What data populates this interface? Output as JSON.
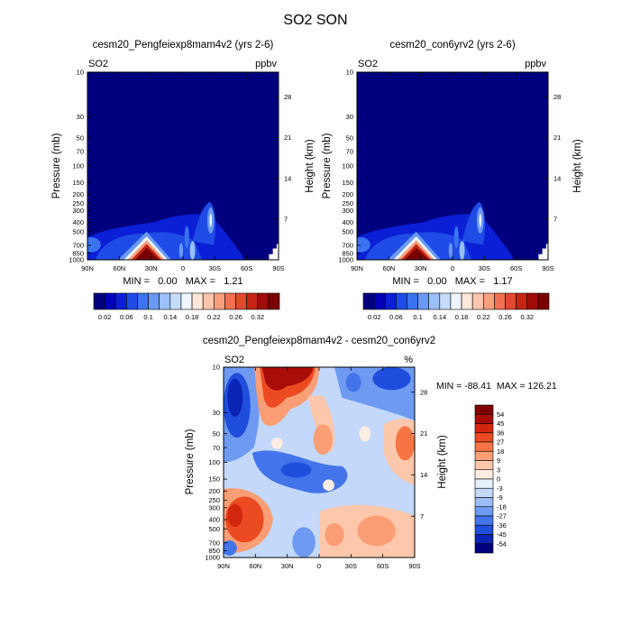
{
  "figure": {
    "title": "SO2 SON"
  },
  "chart_data": [
    {
      "type": "heatmap",
      "title": "cesm20_Pengfeiexp8mam4v2 (yrs 2-6)",
      "left_label": "SO2",
      "right_label": "ppbv",
      "ylabel": "Pressure (mb)",
      "ylabel_right": "Height (km)",
      "x_ticks": [
        "90N",
        "60N",
        "30N",
        "0",
        "30S",
        "60S",
        "90S"
      ],
      "y_ticks": [
        "10",
        "30",
        "50",
        "70",
        "100",
        "150",
        "200",
        "250",
        "300",
        "400",
        "500",
        "700",
        "850",
        "1000"
      ],
      "y_ticks_right": [
        "28",
        "21",
        "14",
        "7"
      ],
      "ylim": [
        1000,
        10
      ],
      "xlim": [
        "90N",
        "90S"
      ],
      "min_max_text": "MIN =   0.00   MAX =   1.21",
      "min": 0.0,
      "max": 1.21,
      "colorbar_labels": [
        "0.02",
        "0.06",
        "0.1",
        "0.14",
        "0.18",
        "0.22",
        "0.26",
        "0.32"
      ],
      "colorbar_levels": [
        0.02,
        0.04,
        0.06,
        0.08,
        0.1,
        0.12,
        0.14,
        0.16,
        0.18,
        0.2,
        0.22,
        0.24,
        0.26,
        0.28,
        0.3,
        0.32
      ]
    },
    {
      "type": "heatmap",
      "title": "cesm20_con6yrv2 (yrs 2-6)",
      "left_label": "SO2",
      "right_label": "ppbv",
      "ylabel": "Pressure (mb)",
      "ylabel_right": "Height (km)",
      "x_ticks": [
        "90N",
        "60N",
        "30N",
        "0",
        "30S",
        "60S",
        "90S"
      ],
      "y_ticks": [
        "10",
        "30",
        "50",
        "70",
        "100",
        "150",
        "200",
        "250",
        "300",
        "400",
        "500",
        "700",
        "850",
        "1000"
      ],
      "y_ticks_right": [
        "28",
        "21",
        "14",
        "7"
      ],
      "ylim": [
        1000,
        10
      ],
      "xlim": [
        "90N",
        "90S"
      ],
      "min_max_text": "MIN =   0.00   MAX =   1.17",
      "min": 0.0,
      "max": 1.17,
      "colorbar_labels": [
        "0.02",
        "0.06",
        "0.1",
        "0.14",
        "0.18",
        "0.22",
        "0.26",
        "0.32"
      ],
      "colorbar_levels": [
        0.02,
        0.04,
        0.06,
        0.08,
        0.1,
        0.12,
        0.14,
        0.16,
        0.18,
        0.2,
        0.22,
        0.24,
        0.26,
        0.28,
        0.3,
        0.32
      ]
    },
    {
      "type": "heatmap",
      "title": "cesm20_Pengfeiexp8mam4v2 - cesm20_con6yrv2",
      "left_label": "SO2",
      "right_label": "%",
      "ylabel": "Pressure (mb)",
      "ylabel_right": "Height (km)",
      "x_ticks": [
        "90N",
        "60N",
        "30N",
        "0",
        "30S",
        "60S",
        "90S"
      ],
      "y_ticks": [
        "10",
        "30",
        "50",
        "70",
        "100",
        "150",
        "200",
        "250",
        "300",
        "400",
        "500",
        "700",
        "850",
        "1000"
      ],
      "y_ticks_right": [
        "28",
        "21",
        "14",
        "7"
      ],
      "ylim": [
        1000,
        10
      ],
      "xlim": [
        "90N",
        "90S"
      ],
      "min_max_text": "MIN = -88.41  MAX = 126.21",
      "min": -88.41,
      "max": 126.21,
      "colorbar_labels": [
        "54",
        "45",
        "36",
        "27",
        "18",
        "9",
        "3",
        "0",
        "-3",
        "-9",
        "-18",
        "-27",
        "-36",
        "-45",
        "-54"
      ],
      "colorbar_levels": [
        54,
        45,
        36,
        27,
        18,
        9,
        3,
        0,
        -3,
        -9,
        -18,
        -27,
        -36,
        -45,
        -54
      ]
    }
  ],
  "colors": {
    "seq": [
      "#00007f",
      "#0000b8",
      "#0b1fd6",
      "#1f4be6",
      "#3a74f0",
      "#6a9af5",
      "#9bbff8",
      "#c6dcfb",
      "#eef5fe",
      "#fde6da",
      "#fbc6ad",
      "#f89f7e",
      "#f07250",
      "#e04a2e",
      "#c42515",
      "#a00c07",
      "#7a0000"
    ],
    "div": [
      "#7f0000",
      "#a80d08",
      "#d2260f",
      "#ec4a22",
      "#f77545",
      "#fb9e75",
      "#fdc7ab",
      "#feede2",
      "#e6f0fd",
      "#c3d8fb",
      "#9bbdf7",
      "#6f9af2",
      "#4474ea",
      "#1f4ddc",
      "#0b24b4",
      "#00007f"
    ]
  }
}
